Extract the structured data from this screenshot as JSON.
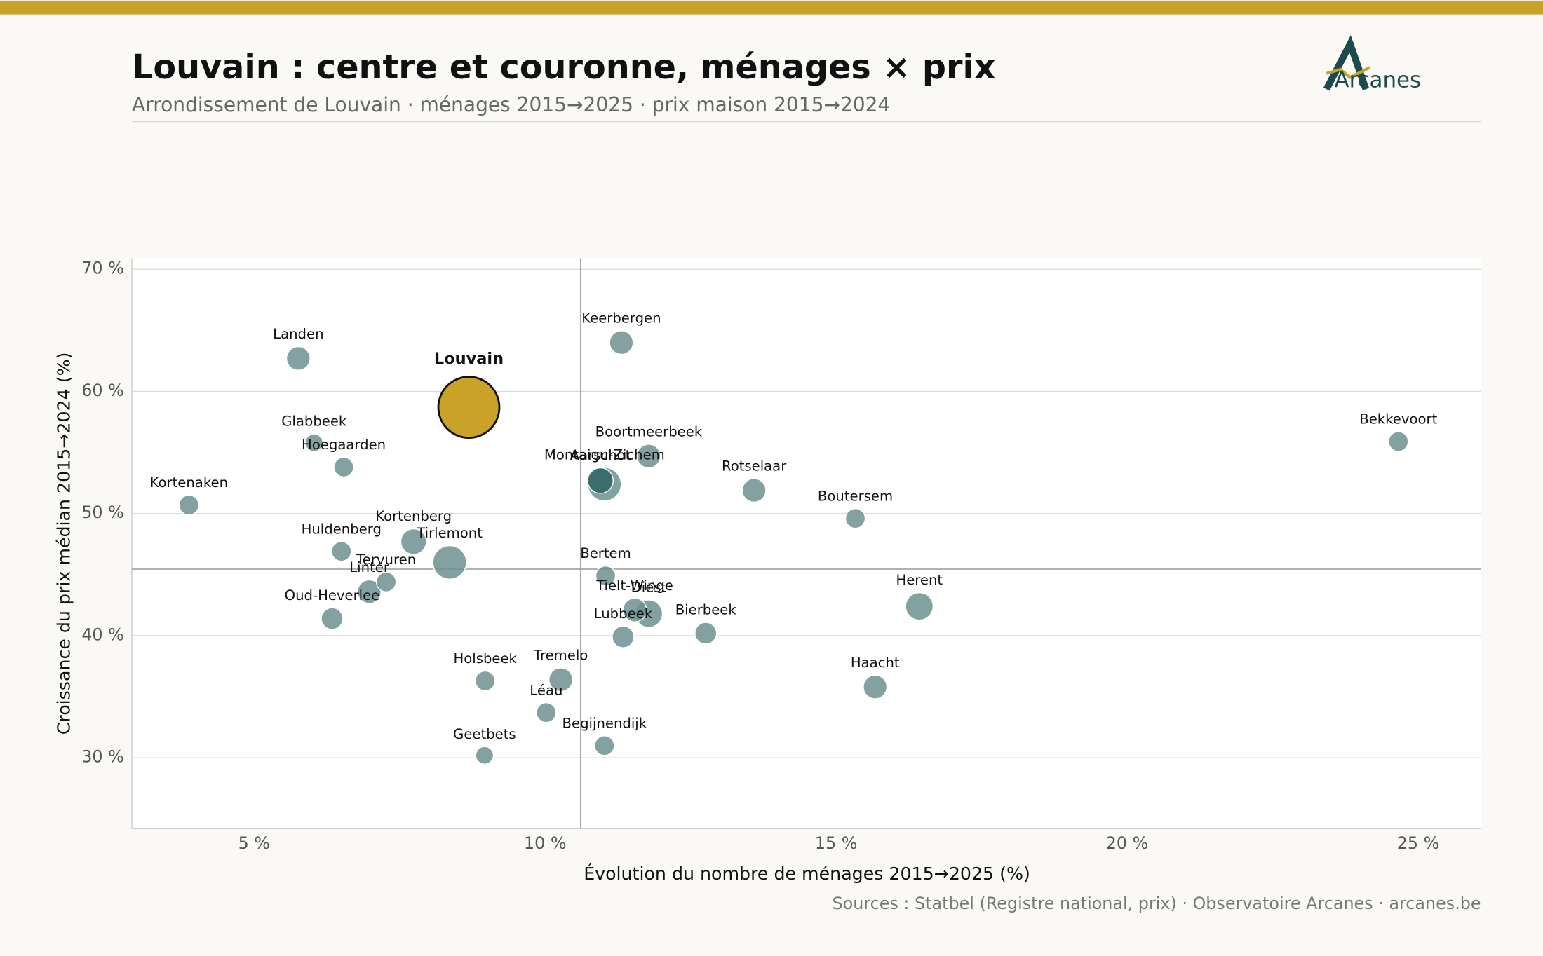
{
  "chart_data": {
    "type": "bubble",
    "title": "Louvain : centre et couronne, ménages × prix",
    "subtitle": "Arrondissement de Louvain · ménages 2015→2025 · prix maison 2015→2024",
    "brand": "Arcanes",
    "source": "Sources : Statbel (Registre national, prix) · Observatoire Arcanes · arcanes.be",
    "x_label": "Évolution du nombre de ménages 2015→2025 (%)",
    "y_label": "Croissance du prix médian 2015→2024 (%)",
    "xlim": [
      2.9,
      26.08
    ],
    "ylim": [
      24.2,
      70.9
    ],
    "xticks": [
      {
        "value": 5,
        "label": "5 %"
      },
      {
        "value": 10,
        "label": "10 %"
      },
      {
        "value": 15,
        "label": "15 %"
      },
      {
        "value": 20,
        "label": "20 %"
      },
      {
        "value": 25,
        "label": "25 %"
      }
    ],
    "yticks": [
      {
        "value": 30,
        "label": "30 %"
      },
      {
        "value": 40,
        "label": "40 %"
      },
      {
        "value": 50,
        "label": "50 %"
      },
      {
        "value": 60,
        "label": "60 %"
      },
      {
        "value": 70,
        "label": "70 %"
      }
    ],
    "grid": true,
    "reference_lines": {
      "x": 10.61,
      "y": 45.45
    },
    "labels": [
      "Landen",
      "Louvain",
      "Keerbergen",
      "Glabbeek",
      "Hoegaarden",
      "Kortenaken",
      "Boortmeerbeek",
      "Montaigu-Zichem",
      "Aarschot",
      "Rotselaar",
      "Boutersem",
      "Bekkevoort",
      "Huldenberg",
      "Kortenberg",
      "Tirlemont",
      "Tervuren",
      "Linter",
      "Oud-Heverlee",
      "Bertem",
      "Diest",
      "Tielt-Winge",
      "Lubbeek",
      "Bierbeek",
      "Herent",
      "Haacht",
      "Holsbeek",
      "Tremelo",
      "Léau",
      "Begijnendijk",
      "Geetbets"
    ],
    "x": [
      5.76,
      8.69,
      11.31,
      6.03,
      6.54,
      3.88,
      11.78,
      11.02,
      10.95,
      13.59,
      15.33,
      24.66,
      6.5,
      7.74,
      8.36,
      7.27,
      6.98,
      6.34,
      11.04,
      11.78,
      11.54,
      11.34,
      12.76,
      16.43,
      15.67,
      8.97,
      10.27,
      10.02,
      11.02,
      8.96
    ],
    "y": [
      62.7,
      58.7,
      64.0,
      55.8,
      53.8,
      50.7,
      54.7,
      52.4,
      52.7,
      51.9,
      49.6,
      55.9,
      46.9,
      47.7,
      46.0,
      44.4,
      43.6,
      41.4,
      44.9,
      41.8,
      42.1,
      39.9,
      40.2,
      42.4,
      35.8,
      36.3,
      36.4,
      33.7,
      31.0,
      30.2
    ],
    "sizes": [
      12,
      31,
      12,
      9,
      10,
      10,
      12,
      17,
      13,
      12,
      10,
      10,
      10,
      13,
      17,
      10,
      12,
      11,
      10,
      14,
      12,
      11,
      11,
      14,
      12,
      10,
      12,
      10,
      10,
      9
    ],
    "colors": [
      "#6e9191",
      "#c9a227",
      "#6e9191",
      "#6e9191",
      "#6e9191",
      "#6e9191",
      "#6e9191",
      "#6e9191",
      "#2f6464",
      "#6e9191",
      "#6e9191",
      "#6e9191",
      "#6e9191",
      "#6e9191",
      "#6e9191",
      "#6e9191",
      "#6e9191",
      "#6e9191",
      "#6e9191",
      "#6e9191",
      "#6e9191",
      "#6e9191",
      "#6e9191",
      "#6e9191",
      "#6e9191",
      "#6e9191",
      "#6e9191",
      "#6e9191",
      "#6e9191",
      "#6e9191"
    ]
  }
}
